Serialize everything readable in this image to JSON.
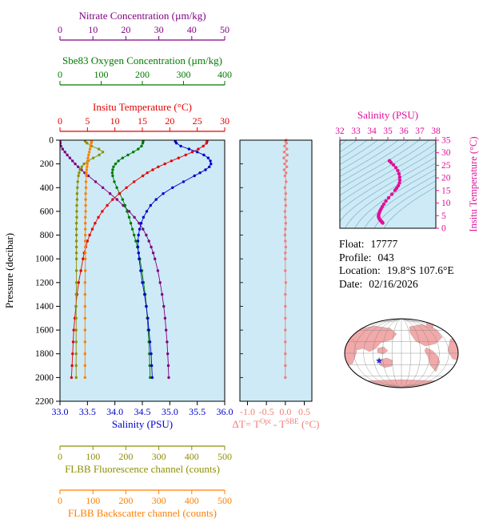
{
  "colors": {
    "plot_bg": "#cdeaf6",
    "frame": "#000000",
    "nitrate": "#800080",
    "oxygen": "#007a00",
    "temperature": "#e60000",
    "salinity": "#0000cd",
    "fluorescence": "#8f8f00",
    "backscatter": "#ff7f00",
    "delta_t": "#f07e78",
    "ts": "#e0109a",
    "ts_contour": "#6fa9c0",
    "map_land": "#f2a9a9",
    "map_grid": "#808080",
    "star": "#2233cc"
  },
  "info": {
    "float_label": "Float:",
    "float_value": "17777",
    "profile_label": "Profile:",
    "profile_value": "043",
    "location_label": "Location:",
    "location_value": "19.8°S  107.6°E",
    "date_label": "Date:",
    "date_value": "02/16/2026"
  },
  "chart_data": [
    {
      "id": "profile-panel",
      "type": "line",
      "y_axis": {
        "label": "Pressure (decibar)",
        "min": 0,
        "max": 2200,
        "ticks": [
          0,
          200,
          400,
          600,
          800,
          1000,
          1200,
          1400,
          1600,
          1800,
          2000,
          2200
        ]
      },
      "pressure_dbar": [
        0,
        10,
        25,
        50,
        75,
        100,
        125,
        150,
        175,
        200,
        225,
        250,
        275,
        300,
        350,
        400,
        450,
        500,
        550,
        600,
        650,
        700,
        750,
        800,
        850,
        900,
        950,
        1000,
        1100,
        1200,
        1300,
        1400,
        1500,
        1600,
        1700,
        1800,
        1900,
        2000
      ],
      "series": [
        {
          "key": "nitrate",
          "name": "Nitrate Concentration (µm/kg)",
          "axis_min": 0,
          "axis_max": 50,
          "ticks": [
            0,
            10,
            20,
            30,
            40,
            50
          ],
          "tick_labels": [
            "0",
            "10",
            "20",
            "30",
            "40",
            "50"
          ],
          "values": [
            0.0,
            0.0,
            0.1,
            0.3,
            0.8,
            1.5,
            2.2,
            3.0,
            3.8,
            4.6,
            5.5,
            6.5,
            7.5,
            8.6,
            10.8,
            13.0,
            15.2,
            17.3,
            19.2,
            21.0,
            22.6,
            24.0,
            25.2,
            26.2,
            27.0,
            27.7,
            28.3,
            28.8,
            29.7,
            30.4,
            31.0,
            31.5,
            31.9,
            32.2,
            32.5,
            32.7,
            32.9,
            33.0
          ]
        },
        {
          "key": "oxygen",
          "name": "Sbe83 Oxygen Concentration (µm/kg)",
          "axis_min": 0,
          "axis_max": 400,
          "ticks": [
            0,
            100,
            200,
            300,
            400
          ],
          "tick_labels": [
            "0",
            "100",
            "200",
            "300",
            "400"
          ],
          "values": [
            202,
            202,
            201,
            198,
            190,
            178,
            165,
            152,
            142,
            135,
            130,
            128,
            127,
            128,
            132,
            138,
            145,
            152,
            158,
            163,
            168,
            172,
            176,
            180,
            184,
            188,
            191,
            194,
            199,
            203,
            207,
            210,
            212,
            214,
            216,
            217,
            218,
            219
          ]
        },
        {
          "key": "temperature",
          "name": "Insitu Temperature (°C)",
          "axis_min": 0,
          "axis_max": 30,
          "ticks": [
            0,
            5,
            10,
            15,
            20,
            25,
            30
          ],
          "tick_labels": [
            "0",
            "5",
            "10",
            "15",
            "20",
            "25",
            "30"
          ],
          "values": [
            26.8,
            26.8,
            26.7,
            26.1,
            25.2,
            24.1,
            22.9,
            21.6,
            20.3,
            19.1,
            17.9,
            16.9,
            15.9,
            15.1,
            13.5,
            12.1,
            10.8,
            9.6,
            8.6,
            7.7,
            7.0,
            6.4,
            5.9,
            5.4,
            5.0,
            4.7,
            4.4,
            4.2,
            3.8,
            3.4,
            3.1,
            2.9,
            2.7,
            2.5,
            2.4,
            2.3,
            2.2,
            2.1
          ]
        },
        {
          "key": "salinity",
          "name": "Salinity (PSU)",
          "axis_min": 33.0,
          "axis_max": 36.0,
          "ticks": [
            33.0,
            33.5,
            34.0,
            34.5,
            35.0,
            35.5,
            36.0
          ],
          "tick_labels": [
            "33.0",
            "33.5",
            "34.0",
            "34.5",
            "35.0",
            "35.5",
            "36.0"
          ],
          "values": [
            35.1,
            35.1,
            35.12,
            35.2,
            35.35,
            35.5,
            35.62,
            35.7,
            35.74,
            35.75,
            35.72,
            35.65,
            35.55,
            35.45,
            35.25,
            35.05,
            34.88,
            34.75,
            34.65,
            34.58,
            34.52,
            34.48,
            34.45,
            34.43,
            34.42,
            34.42,
            34.43,
            34.44,
            34.47,
            34.5,
            34.54,
            34.57,
            34.6,
            34.62,
            34.64,
            34.66,
            34.67,
            34.68
          ]
        },
        {
          "key": "fluorescence",
          "name": "FLBB Fluorescence channel (counts)",
          "axis_min": 0,
          "axis_max": 500,
          "ticks": [
            0,
            100,
            200,
            300,
            400,
            500
          ],
          "tick_labels": [
            "0",
            "100",
            "200",
            "300",
            "400",
            "500"
          ],
          "values": [
            76,
            77,
            82,
            96,
            118,
            130,
            119,
            101,
            86,
            73,
            66,
            61,
            58,
            56,
            54,
            53,
            52,
            52,
            51,
            51,
            51,
            50,
            50,
            50,
            50,
            50,
            50,
            50,
            50,
            50,
            49,
            49,
            49,
            49,
            49,
            49,
            49,
            49
          ]
        },
        {
          "key": "backscatter",
          "name": "FLBB Backscatter channel (counts)",
          "axis_min": 0,
          "axis_max": 500,
          "ticks": [
            0,
            100,
            200,
            300,
            400,
            500
          ],
          "tick_labels": [
            "0",
            "100",
            "200",
            "300",
            "400",
            "500"
          ],
          "values": [
            96,
            96,
            95,
            93,
            91,
            89,
            87,
            85,
            84,
            83,
            82,
            81,
            80,
            80,
            79,
            79,
            78,
            78,
            78,
            78,
            77,
            77,
            77,
            77,
            77,
            77,
            77,
            77,
            77,
            76,
            76,
            76,
            76,
            76,
            76,
            76,
            76,
            76
          ]
        }
      ]
    },
    {
      "id": "delta-t-panel",
      "type": "scatter",
      "x_axis": {
        "min": -1.2,
        "max": 0.7,
        "ticks": [
          -1.0,
          -0.5,
          0.0,
          0.5
        ],
        "tick_labels": [
          "-1.0",
          "-0.5",
          "0.0",
          "0.5"
        ]
      },
      "title_parts": {
        "prefix": "ΔT= T",
        "sup1": "Opt",
        "mid": " - T",
        "sup2": "SBE",
        "suffix": " (°C)"
      },
      "values": [
        0.02,
        0.01,
        0.03,
        -0.02,
        0.04,
        -0.03,
        0.05,
        -0.04,
        0.03,
        -0.02,
        0.04,
        -0.03,
        0.02,
        -0.01,
        0.02,
        -0.01,
        0.01,
        0.0,
        0.01,
        -0.01,
        0.0,
        0.01,
        0.0,
        -0.01,
        0.0,
        0.01,
        0.0,
        0.0,
        0.0,
        0.01,
        0.0,
        0.0,
        0.0,
        0.0,
        0.0,
        0.0,
        0.0,
        0.0
      ]
    },
    {
      "id": "ts-panel",
      "type": "scatter",
      "x_axis": {
        "label": "Salinity (PSU)",
        "min": 32,
        "max": 38,
        "ticks": [
          32,
          33,
          34,
          35,
          36,
          37,
          38
        ],
        "tick_labels": [
          "32",
          "33",
          "34",
          "35",
          "36",
          "37",
          "38"
        ]
      },
      "y_axis": {
        "label": "Insitu Temperature (°C)",
        "min": 0,
        "max": 35,
        "ticks": [
          0,
          5,
          10,
          15,
          20,
          25,
          30,
          35
        ],
        "tick_labels": [
          "0",
          "5",
          "10",
          "15",
          "20",
          "25",
          "30",
          "35"
        ]
      },
      "sigma_theta_contours": {
        "min": 20.5,
        "max": 28.5,
        "step": 0.5
      },
      "points_source": "salinity-vs-temperature from profile-panel series"
    },
    {
      "id": "world-map",
      "type": "map",
      "float_position": {
        "lat": -19.8,
        "lon": 107.6
      }
    }
  ]
}
